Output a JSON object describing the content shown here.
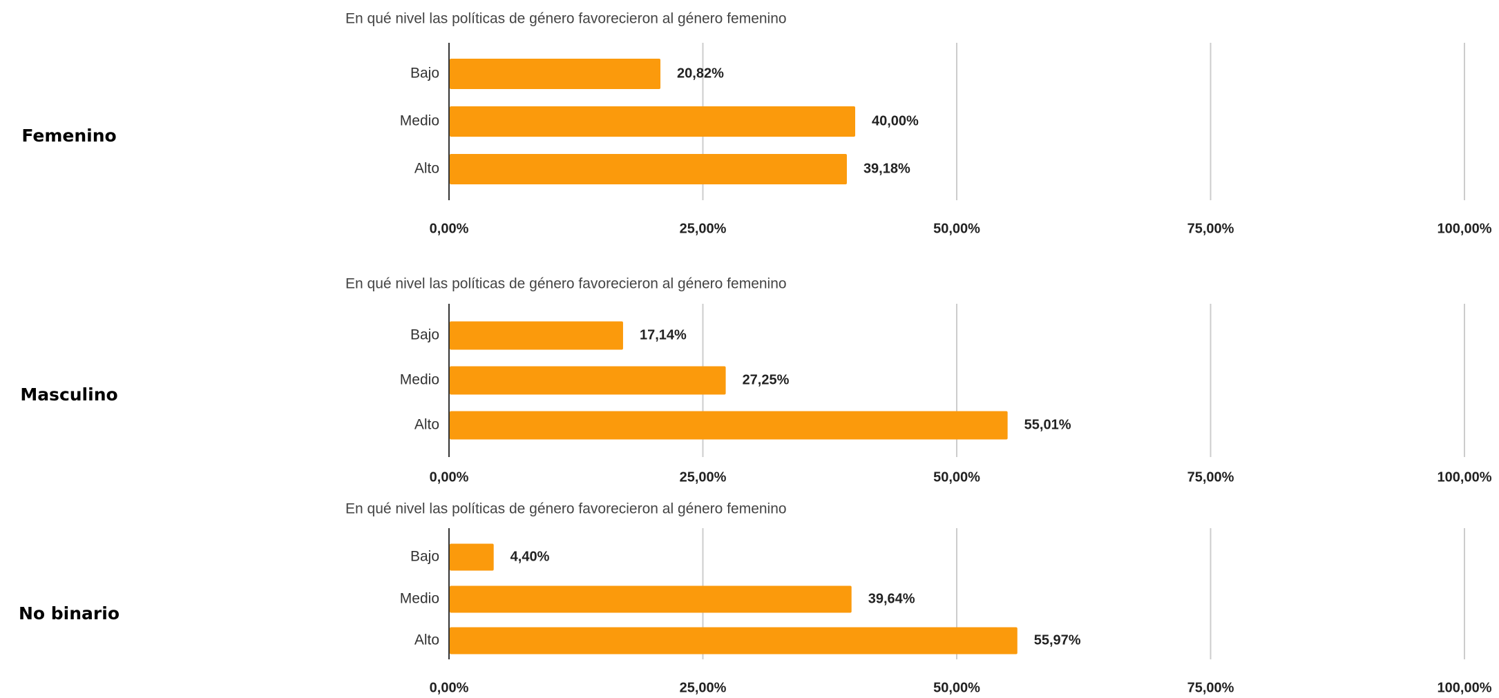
{
  "chart_data": [
    {
      "type": "bar",
      "orientation": "horizontal",
      "group": "Femenino",
      "title": "En qué nivel las políticas de género favorecieron al género femenino",
      "categories": [
        "Bajo",
        "Medio",
        "Alto"
      ],
      "values": [
        20.82,
        40.0,
        39.18
      ],
      "value_labels": [
        "20,82%",
        "40,00%",
        "39,18%"
      ],
      "color": "#fb9a0c",
      "xlim": [
        0,
        100
      ],
      "xticks": [
        {
          "value": 0,
          "label": "0,00%"
        },
        {
          "value": 25,
          "label": "25,00%"
        },
        {
          "value": 50,
          "label": "50,00%"
        },
        {
          "value": 75,
          "label": "75,00%"
        },
        {
          "value": 100,
          "label": "100,00%"
        }
      ],
      "grid": true
    },
    {
      "type": "bar",
      "orientation": "horizontal",
      "group": "Masculino",
      "title": "En qué nivel las políticas de género favorecieron al género femenino",
      "categories": [
        "Bajo",
        "Medio",
        "Alto"
      ],
      "values": [
        17.14,
        27.25,
        55.01
      ],
      "value_labels": [
        "17,14%",
        "27,25%",
        "55,01%"
      ],
      "color": "#fb9a0c",
      "xlim": [
        0,
        100
      ],
      "xticks": [
        {
          "value": 0,
          "label": "0,00%"
        },
        {
          "value": 25,
          "label": "25,00%"
        },
        {
          "value": 50,
          "label": "50,00%"
        },
        {
          "value": 75,
          "label": "75,00%"
        },
        {
          "value": 100,
          "label": "100,00%"
        }
      ],
      "grid": true
    },
    {
      "type": "bar",
      "orientation": "horizontal",
      "group": "No binario",
      "title": "En qué nivel las políticas de género favorecieron al género femenino",
      "categories": [
        "Bajo",
        "Medio",
        "Alto"
      ],
      "values": [
        4.4,
        39.64,
        55.97
      ],
      "value_labels": [
        "4,40%",
        "39,64%",
        "55,97%"
      ],
      "color": "#fb9a0c",
      "xlim": [
        0,
        100
      ],
      "xticks": [
        {
          "value": 0,
          "label": "0,00%"
        },
        {
          "value": 25,
          "label": "25,00%"
        },
        {
          "value": 50,
          "label": "50,00%"
        },
        {
          "value": 75,
          "label": "75,00%"
        },
        {
          "value": 100,
          "label": "100,00%"
        }
      ],
      "grid": true
    }
  ]
}
